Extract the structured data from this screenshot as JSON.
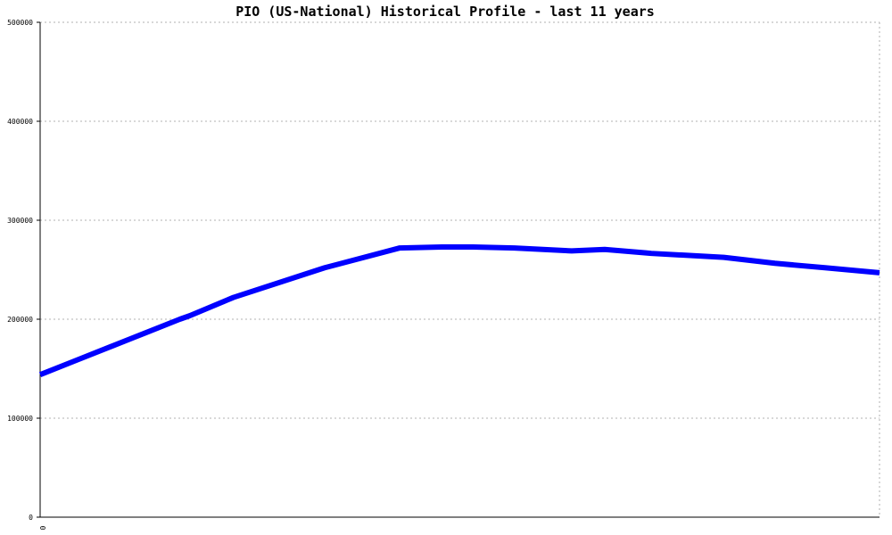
{
  "chart_data": {
    "type": "line",
    "title": "PIO (US-National) Historical Profile - last 11 years",
    "xlabel": "",
    "ylabel": "",
    "x_tick_labels": [
      "0"
    ],
    "y_tick_labels": [
      "0",
      "100000",
      "200000",
      "300000",
      "400000",
      "500000"
    ],
    "ylim": [
      0,
      500000
    ],
    "xlim": [
      0,
      1
    ],
    "grid": true,
    "series": [
      {
        "color": "#0000ff",
        "x": [
          0,
          0.0416,
          0.0832,
          0.1248,
          0.1664,
          0.1781,
          0.2303,
          0.3391,
          0.4285,
          0.4786,
          0.5159,
          0.565,
          0.6332,
          0.6726,
          0.7217,
          0.7281,
          0.8145,
          0.8753,
          0.935,
          1.0
        ],
        "values": [
          144000,
          158000,
          172000,
          186000,
          200000,
          203500,
          222000,
          252000,
          272000,
          273000,
          273000,
          272000,
          269000,
          270500,
          267000,
          266500,
          262500,
          256500,
          252000,
          247000
        ]
      }
    ]
  }
}
